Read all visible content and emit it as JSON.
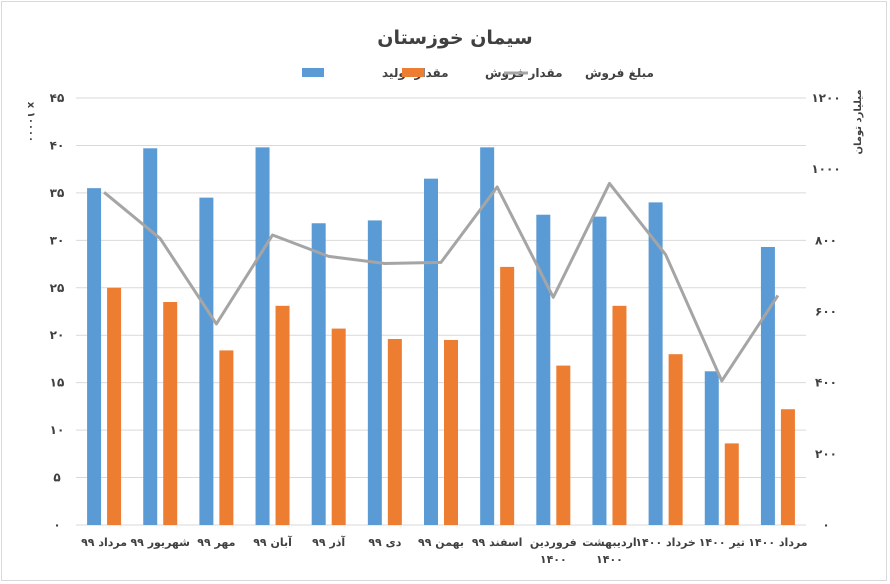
{
  "chart_data": {
    "type": "bar",
    "title": "سیمان خوزستان",
    "categories": [
      [
        "مرداد ۹۹"
      ],
      [
        "شهریور ۹۹"
      ],
      [
        "مهر ۹۹"
      ],
      [
        "آبان ۹۹"
      ],
      [
        "آذر ۹۹"
      ],
      [
        "دی ۹۹"
      ],
      [
        "بهمن ۹۹"
      ],
      [
        "اسفند ۹۹"
      ],
      [
        "فروردین",
        "۱۴۰۰"
      ],
      [
        "اردیبهشت",
        "۱۴۰۰"
      ],
      [
        "خرداد ۱۴۰۰"
      ],
      [
        "تیر ۱۴۰۰"
      ],
      [
        "مرداد ۱۴۰۰"
      ]
    ],
    "left_axis": {
      "label": "x ۱۰۰۰۰",
      "ylim": [
        0,
        45
      ],
      "ticks": [
        "۰",
        "۵",
        "۱۰",
        "۱۵",
        "۲۰",
        "۲۵",
        "۳۰",
        "۳۵",
        "۴۰",
        "۴۵"
      ]
    },
    "right_axis": {
      "label": "میلیارد تومان",
      "ylim": [
        0,
        1200
      ],
      "ticks": [
        "۰",
        "۲۰۰",
        "۴۰۰",
        "۶۰۰",
        "۸۰۰",
        "۱۰۰۰",
        "۱۲۰۰"
      ]
    },
    "series": [
      {
        "name": "مقدار تولید",
        "kind": "bar",
        "axis": "left",
        "color": "#5b9bd5",
        "values": [
          35.5,
          39.7,
          34.5,
          39.8,
          31.8,
          32.1,
          36.5,
          39.8,
          32.7,
          32.5,
          34.0,
          16.2,
          29.3
        ]
      },
      {
        "name": "مقدار فروش",
        "kind": "bar",
        "axis": "left",
        "color": "#ed7d31",
        "values": [
          25.0,
          23.5,
          18.4,
          23.1,
          20.7,
          19.6,
          19.5,
          27.2,
          16.8,
          23.1,
          18.0,
          8.6,
          12.2
        ]
      },
      {
        "name": "مبلغ فروش",
        "kind": "line",
        "axis": "right",
        "color": "#a5a5a5",
        "values": [
          935,
          805,
          565,
          815,
          755,
          735,
          738,
          950,
          640,
          960,
          760,
          405,
          645
        ]
      }
    ],
    "grid": true,
    "legend_position": "top"
  }
}
